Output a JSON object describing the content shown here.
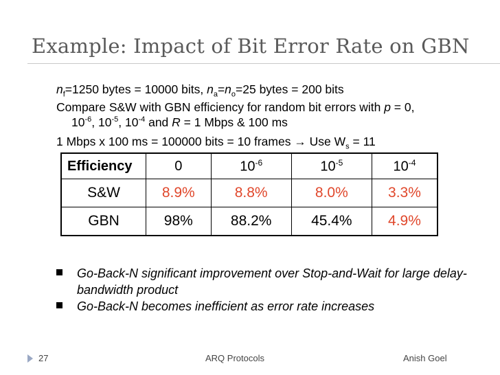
{
  "title": "Example: Impact of Bit Error Rate on GBN",
  "lines": {
    "l1": {
      "n": "n",
      "f": "f",
      "a": "=1250 bytes = 10000 bits, ",
      "na": "n",
      "aa": "a",
      "eq": "=",
      "no": "n",
      "o": "o",
      "b": "=25 bytes = 200 bits"
    },
    "l2": {
      "text": "Compare S&W with GBN efficiency for random bit errors with ",
      "p": "p",
      "rest": " = 0,"
    },
    "l3": {
      "t1": "10",
      "e1": "-6",
      "t2": ", 10",
      "e2": "-5",
      "t3": ", 10",
      "e3": "-4",
      "t4": " and  ",
      "r": "R",
      "t5": " = 1 Mbps & 100 ms"
    },
    "l4": {
      "text": "1 Mbps x 100 ms = 100000 bits = 10 frames → Use W",
      "s": "s",
      "rest": " = 11"
    }
  },
  "table": {
    "header": {
      "label": "Efficiency",
      "c0": "0",
      "c1": "10",
      "c1e": "-6",
      "c2": "10",
      "c2e": "-5",
      "c3": "10",
      "c3e": "-4"
    },
    "rows": [
      {
        "label": "S&W",
        "v": [
          "8.9%",
          "8.8%",
          "8.0%",
          "3.3%"
        ]
      },
      {
        "label": "GBN",
        "v": [
          "98%",
          "88.2%",
          "45.4%",
          "4.9%"
        ]
      }
    ]
  },
  "bullets": [
    "Go-Back-N significant improvement over Stop-and-Wait for large delay-bandwidth product",
    "Go-Back-N becomes inefficient as error rate increases"
  ],
  "footer": {
    "page": "27",
    "center": "ARQ Protocols",
    "right": "Anish Goel"
  },
  "colors": {
    "title": "#5a5a5a",
    "red": "#e0472b"
  }
}
